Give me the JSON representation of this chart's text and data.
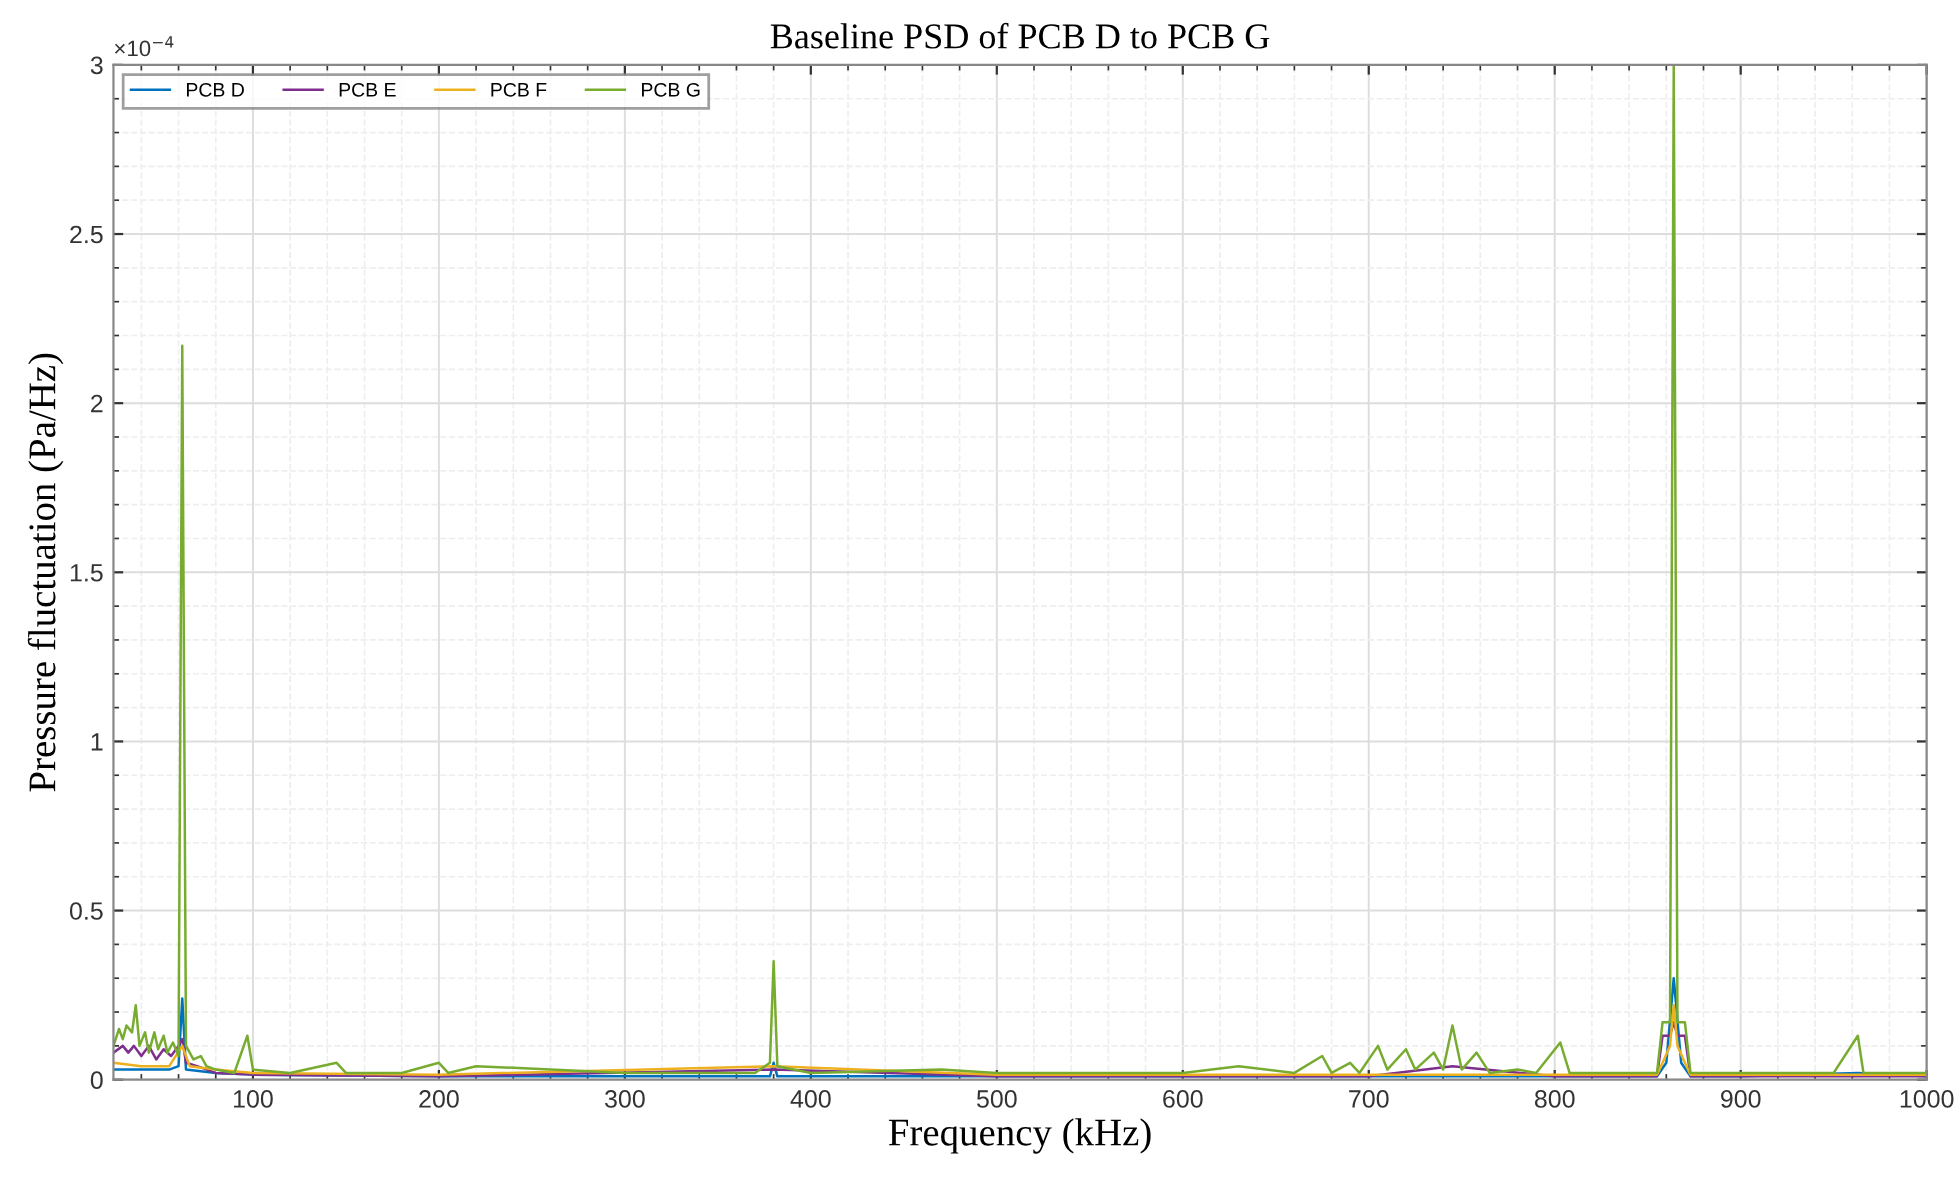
{
  "chart_data": {
    "type": "line",
    "title": "Baseline PSD of PCB D to PCB G",
    "xlabel": "Frequency (kHz)",
    "ylabel": "Pressure fluctuation (Pa/Hz)",
    "annotations": [
      "×10$^{−4}$"
    ],
    "xlim": [
      25,
      1000
    ],
    "ylim": [
      0,
      3
    ],
    "xticks": [
      100,
      200,
      300,
      400,
      500,
      600,
      700,
      800,
      900,
      1000
    ],
    "yticks": [
      0,
      0.5,
      1,
      1.5,
      2,
      2.5,
      3
    ],
    "grid": true,
    "legend": "top left",
    "series": [
      {
        "name": "PCB D",
        "color": "#0072bd",
        "x": [
          25,
          40,
          55,
          60,
          62,
          64,
          80,
          100,
          200,
          300,
          378,
          380,
          382,
          500,
          600,
          700,
          800,
          855,
          860,
          864,
          868,
          873,
          900,
          963,
          1000
        ],
        "values": [
          0.03,
          0.03,
          0.03,
          0.04,
          0.24,
          0.03,
          0.02,
          0.015,
          0.01,
          0.01,
          0.01,
          0.05,
          0.01,
          0.01,
          0.01,
          0.01,
          0.01,
          0.01,
          0.05,
          0.3,
          0.05,
          0.01,
          0.01,
          0.02,
          0.01
        ]
      },
      {
        "name": "PCB E",
        "color": "#7e2f8e",
        "x": [
          25,
          30,
          33,
          36,
          40,
          44,
          48,
          52,
          56,
          60,
          62,
          64,
          70,
          80,
          100,
          200,
          380,
          500,
          700,
          745,
          800,
          855,
          858,
          862,
          864,
          866,
          870,
          873,
          900,
          1000
        ],
        "values": [
          0.08,
          0.1,
          0.08,
          0.1,
          0.07,
          0.1,
          0.06,
          0.09,
          0.07,
          0.1,
          0.12,
          0.05,
          0.04,
          0.02,
          0.015,
          0.01,
          0.03,
          0.01,
          0.01,
          0.04,
          0.01,
          0.01,
          0.13,
          0.13,
          0.17,
          0.13,
          0.13,
          0.01,
          0.01,
          0.01
        ]
      },
      {
        "name": "PCB F",
        "color": "#edb120",
        "x": [
          25,
          40,
          55,
          62,
          66,
          80,
          100,
          200,
          380,
          500,
          700,
          800,
          855,
          858,
          862,
          864,
          866,
          870,
          873,
          900,
          1000
        ],
        "values": [
          0.05,
          0.04,
          0.04,
          0.1,
          0.04,
          0.03,
          0.02,
          0.015,
          0.04,
          0.015,
          0.015,
          0.015,
          0.015,
          0.05,
          0.1,
          0.22,
          0.1,
          0.05,
          0.015,
          0.015,
          0.015
        ]
      },
      {
        "name": "PCB G",
        "color": "#77ac30",
        "x": [
          25,
          28,
          30,
          32,
          35,
          37,
          39,
          42,
          44,
          47,
          49,
          52,
          54,
          57,
          60,
          62,
          64,
          68,
          72,
          75,
          80,
          90,
          97,
          100,
          120,
          145,
          150,
          180,
          200,
          205,
          220,
          300,
          370,
          378,
          380,
          382,
          400,
          470,
          500,
          600,
          630,
          660,
          675,
          680,
          690,
          695,
          705,
          710,
          720,
          725,
          735,
          740,
          745,
          750,
          758,
          765,
          780,
          790,
          803,
          808,
          830,
          855,
          858,
          862,
          864,
          866,
          870,
          873,
          890,
          950,
          963,
          966,
          1000
        ],
        "values": [
          0.1,
          0.15,
          0.12,
          0.16,
          0.14,
          0.22,
          0.1,
          0.14,
          0.08,
          0.14,
          0.09,
          0.13,
          0.08,
          0.11,
          0.07,
          2.17,
          0.1,
          0.06,
          0.07,
          0.04,
          0.03,
          0.02,
          0.13,
          0.03,
          0.02,
          0.05,
          0.02,
          0.02,
          0.05,
          0.02,
          0.04,
          0.02,
          0.02,
          0.05,
          0.35,
          0.04,
          0.02,
          0.03,
          0.02,
          0.02,
          0.04,
          0.02,
          0.07,
          0.02,
          0.05,
          0.02,
          0.1,
          0.03,
          0.09,
          0.03,
          0.08,
          0.03,
          0.16,
          0.03,
          0.08,
          0.02,
          0.03,
          0.02,
          0.11,
          0.02,
          0.02,
          0.02,
          0.17,
          0.17,
          3.0,
          0.17,
          0.17,
          0.02,
          0.02,
          0.02,
          0.13,
          0.02,
          0.02
        ]
      }
    ]
  }
}
